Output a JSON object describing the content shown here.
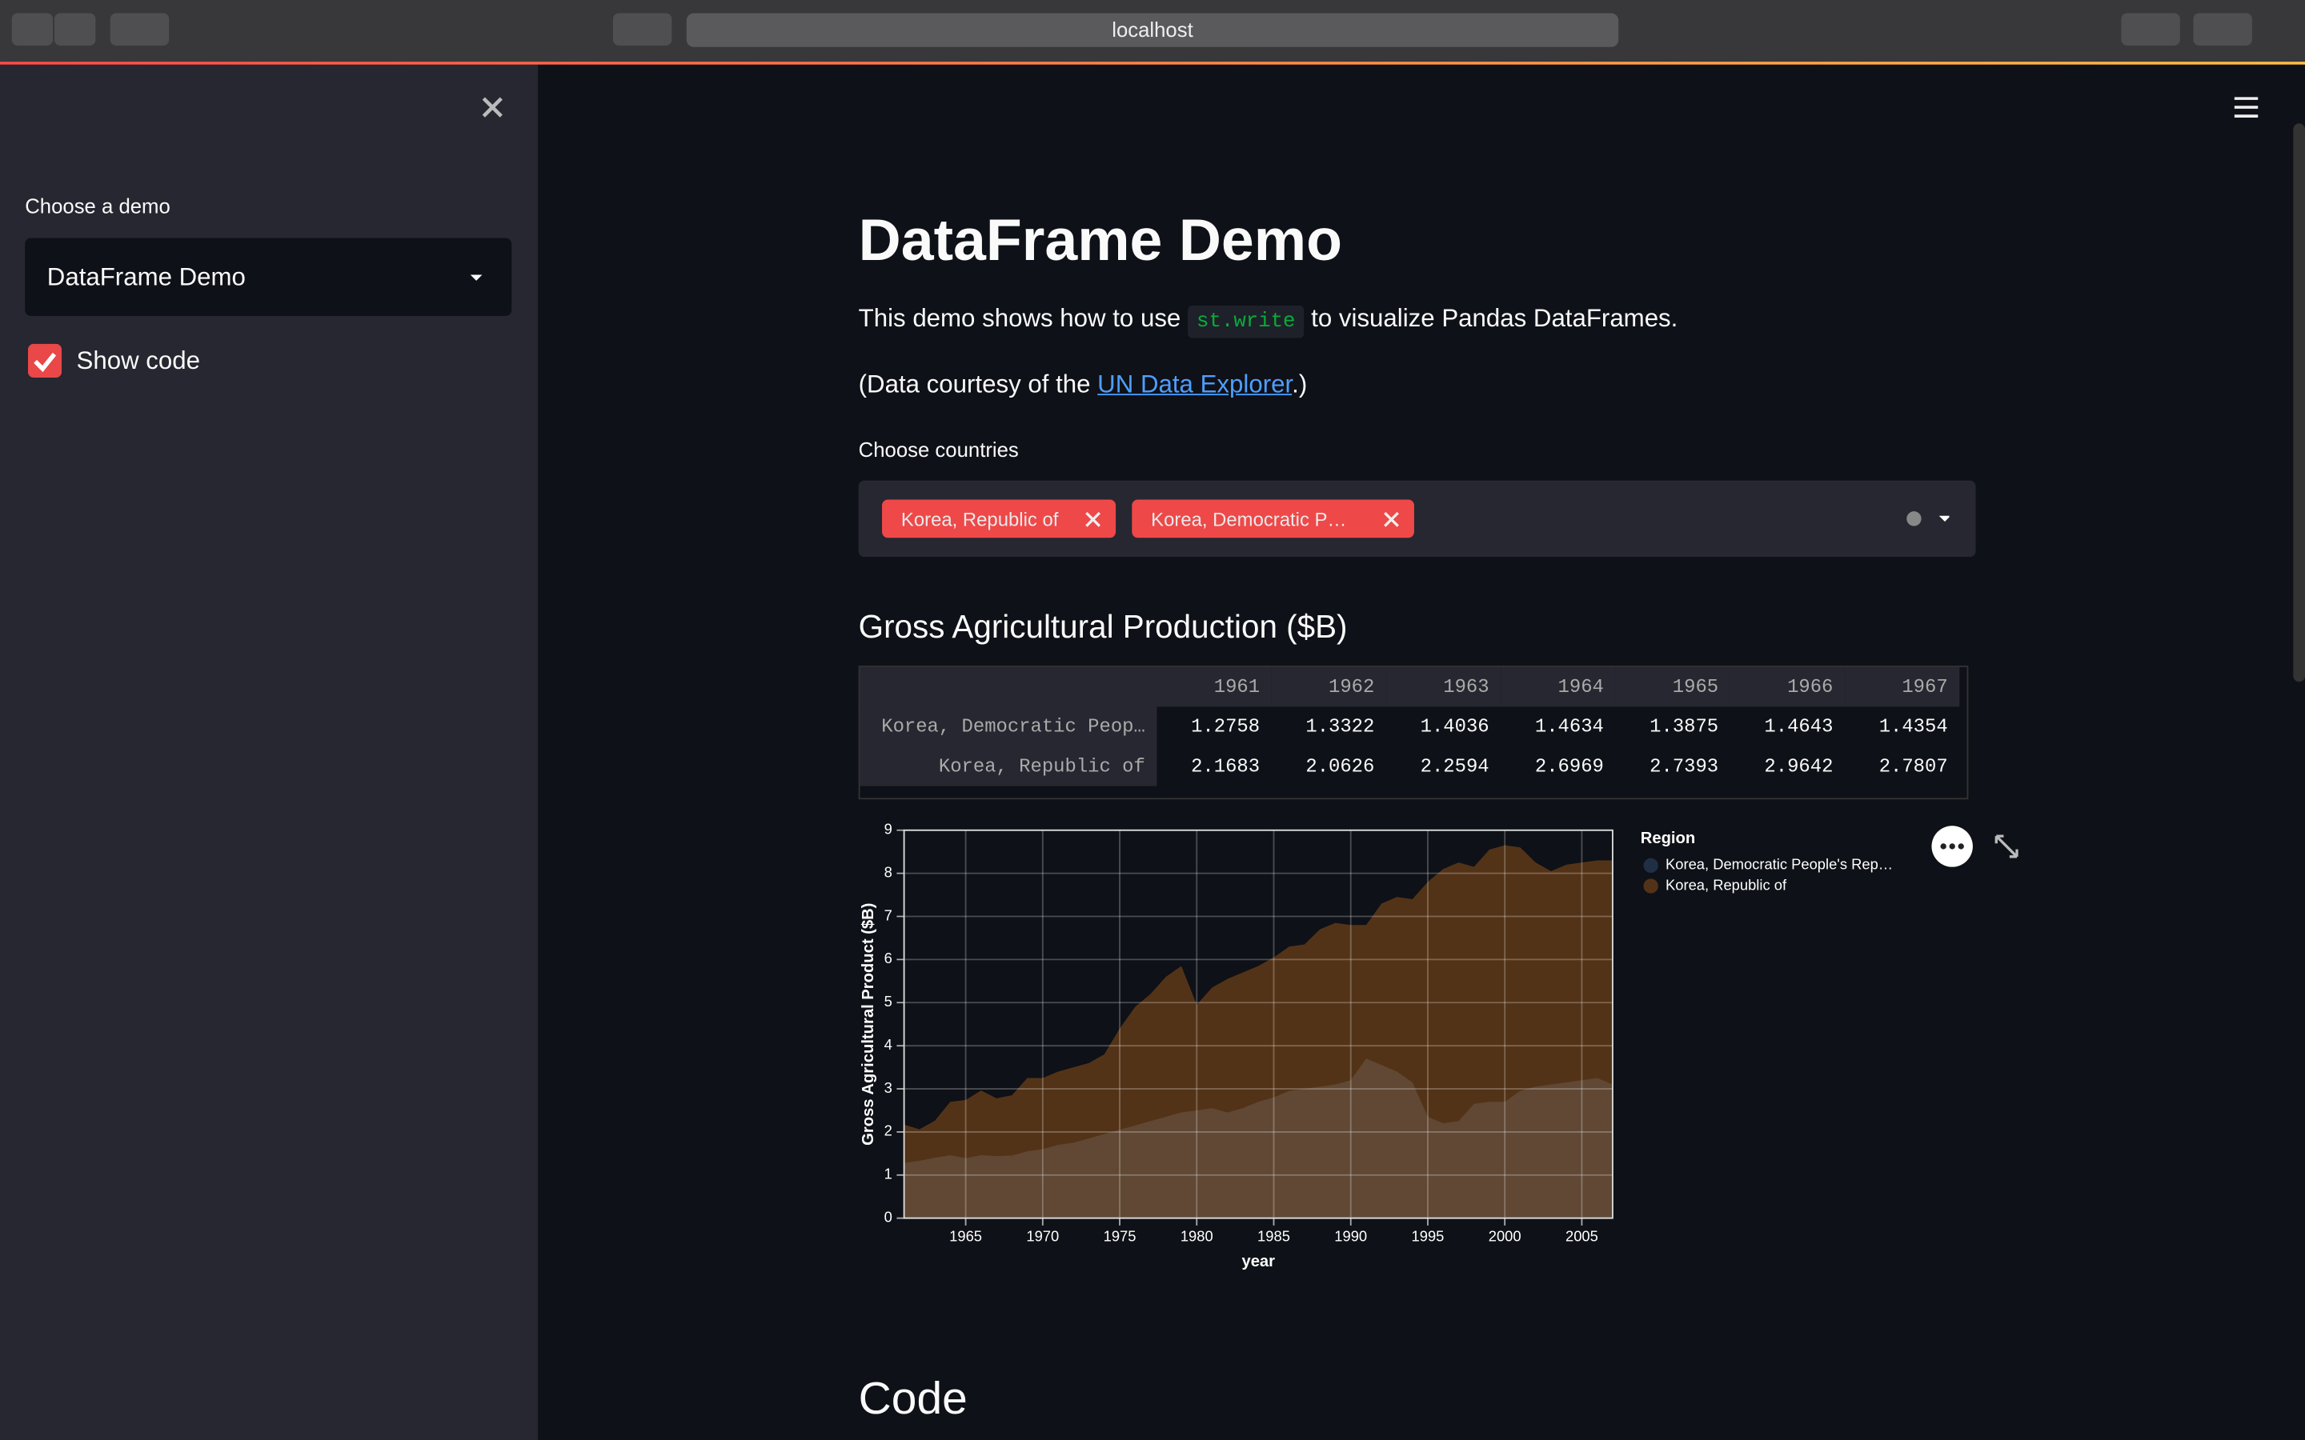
{
  "browser": {
    "url": "localhost"
  },
  "sidebar": {
    "select_label": "Choose a demo",
    "select_value": "DataFrame Demo",
    "checkbox_label": "Show code"
  },
  "main": {
    "title": "DataFrame Demo",
    "intro_before": "This demo shows how to use ",
    "intro_code": "st.write",
    "intro_after": " to visualize Pandas DataFrames.",
    "credit_before": "(Data courtesy of the ",
    "credit_link": "UN Data Explorer",
    "credit_after": ".)",
    "multiselect_label": "Choose countries",
    "tags": [
      "Korea, Republic of",
      "Korea, Democratic P…"
    ],
    "section_title": "Gross Agricultural Production ($B)",
    "code_title": "Code"
  },
  "table": {
    "columns": [
      "1961",
      "1962",
      "1963",
      "1964",
      "1965",
      "1966",
      "1967"
    ],
    "rows": [
      {
        "label": "Korea, Democratic Peop…",
        "cells": [
          "1.2758",
          "1.3322",
          "1.4036",
          "1.4634",
          "1.3875",
          "1.4643",
          "1.4354"
        ]
      },
      {
        "label": "Korea, Republic of",
        "cells": [
          "2.1683",
          "2.0626",
          "2.2594",
          "2.6969",
          "2.7393",
          "2.9642",
          "2.7807"
        ]
      }
    ]
  },
  "chart_data": {
    "type": "area",
    "stacked": false,
    "opacity": 0.3,
    "x_label": "year",
    "y_label": "Gross Agricultural Product ($B)",
    "legend_title": "Region",
    "legend": "right",
    "x": [
      1961,
      1962,
      1963,
      1964,
      1965,
      1966,
      1967,
      1968,
      1969,
      1970,
      1971,
      1972,
      1973,
      1974,
      1975,
      1976,
      1977,
      1978,
      1979,
      1980,
      1981,
      1982,
      1983,
      1984,
      1985,
      1986,
      1987,
      1988,
      1989,
      1990,
      1991,
      1992,
      1993,
      1994,
      1995,
      1996,
      1997,
      1998,
      1999,
      2000,
      2001,
      2002,
      2003,
      2004,
      2005,
      2006,
      2007
    ],
    "series": [
      {
        "name": "Korea, Democratic People's Rep…",
        "color": "#4c78a8",
        "values": [
          1.28,
          1.33,
          1.4,
          1.46,
          1.39,
          1.46,
          1.44,
          1.45,
          1.55,
          1.6,
          1.7,
          1.75,
          1.85,
          1.95,
          2.05,
          2.15,
          2.25,
          2.35,
          2.45,
          2.5,
          2.55,
          2.45,
          2.55,
          2.7,
          2.8,
          2.95,
          3.0,
          3.05,
          3.1,
          3.2,
          3.7,
          3.55,
          3.4,
          3.15,
          2.35,
          2.2,
          2.25,
          2.65,
          2.7,
          2.7,
          2.95,
          3.05,
          3.1,
          3.15,
          3.2,
          3.25,
          3.1
        ]
      },
      {
        "name": "Korea, Republic of",
        "color": "#f58518",
        "values": [
          2.17,
          2.06,
          2.26,
          2.7,
          2.74,
          2.96,
          2.78,
          2.85,
          3.25,
          3.25,
          3.4,
          3.5,
          3.6,
          3.8,
          4.4,
          4.9,
          5.2,
          5.6,
          5.85,
          4.95,
          5.35,
          5.55,
          5.7,
          5.85,
          6.05,
          6.3,
          6.35,
          6.7,
          6.85,
          6.8,
          6.8,
          7.3,
          7.45,
          7.4,
          7.8,
          8.1,
          8.25,
          8.15,
          8.55,
          8.65,
          8.6,
          8.25,
          8.05,
          8.2,
          8.25,
          8.3,
          8.3
        ]
      }
    ],
    "xlim": [
      1961,
      2007
    ],
    "xticks": [
      1965,
      1970,
      1975,
      1980,
      1985,
      1990,
      1995,
      2000,
      2005
    ],
    "ylim": [
      0,
      9
    ],
    "yticks": [
      0,
      1,
      2,
      3,
      4,
      5,
      6,
      7,
      8,
      9
    ],
    "grid": true
  }
}
